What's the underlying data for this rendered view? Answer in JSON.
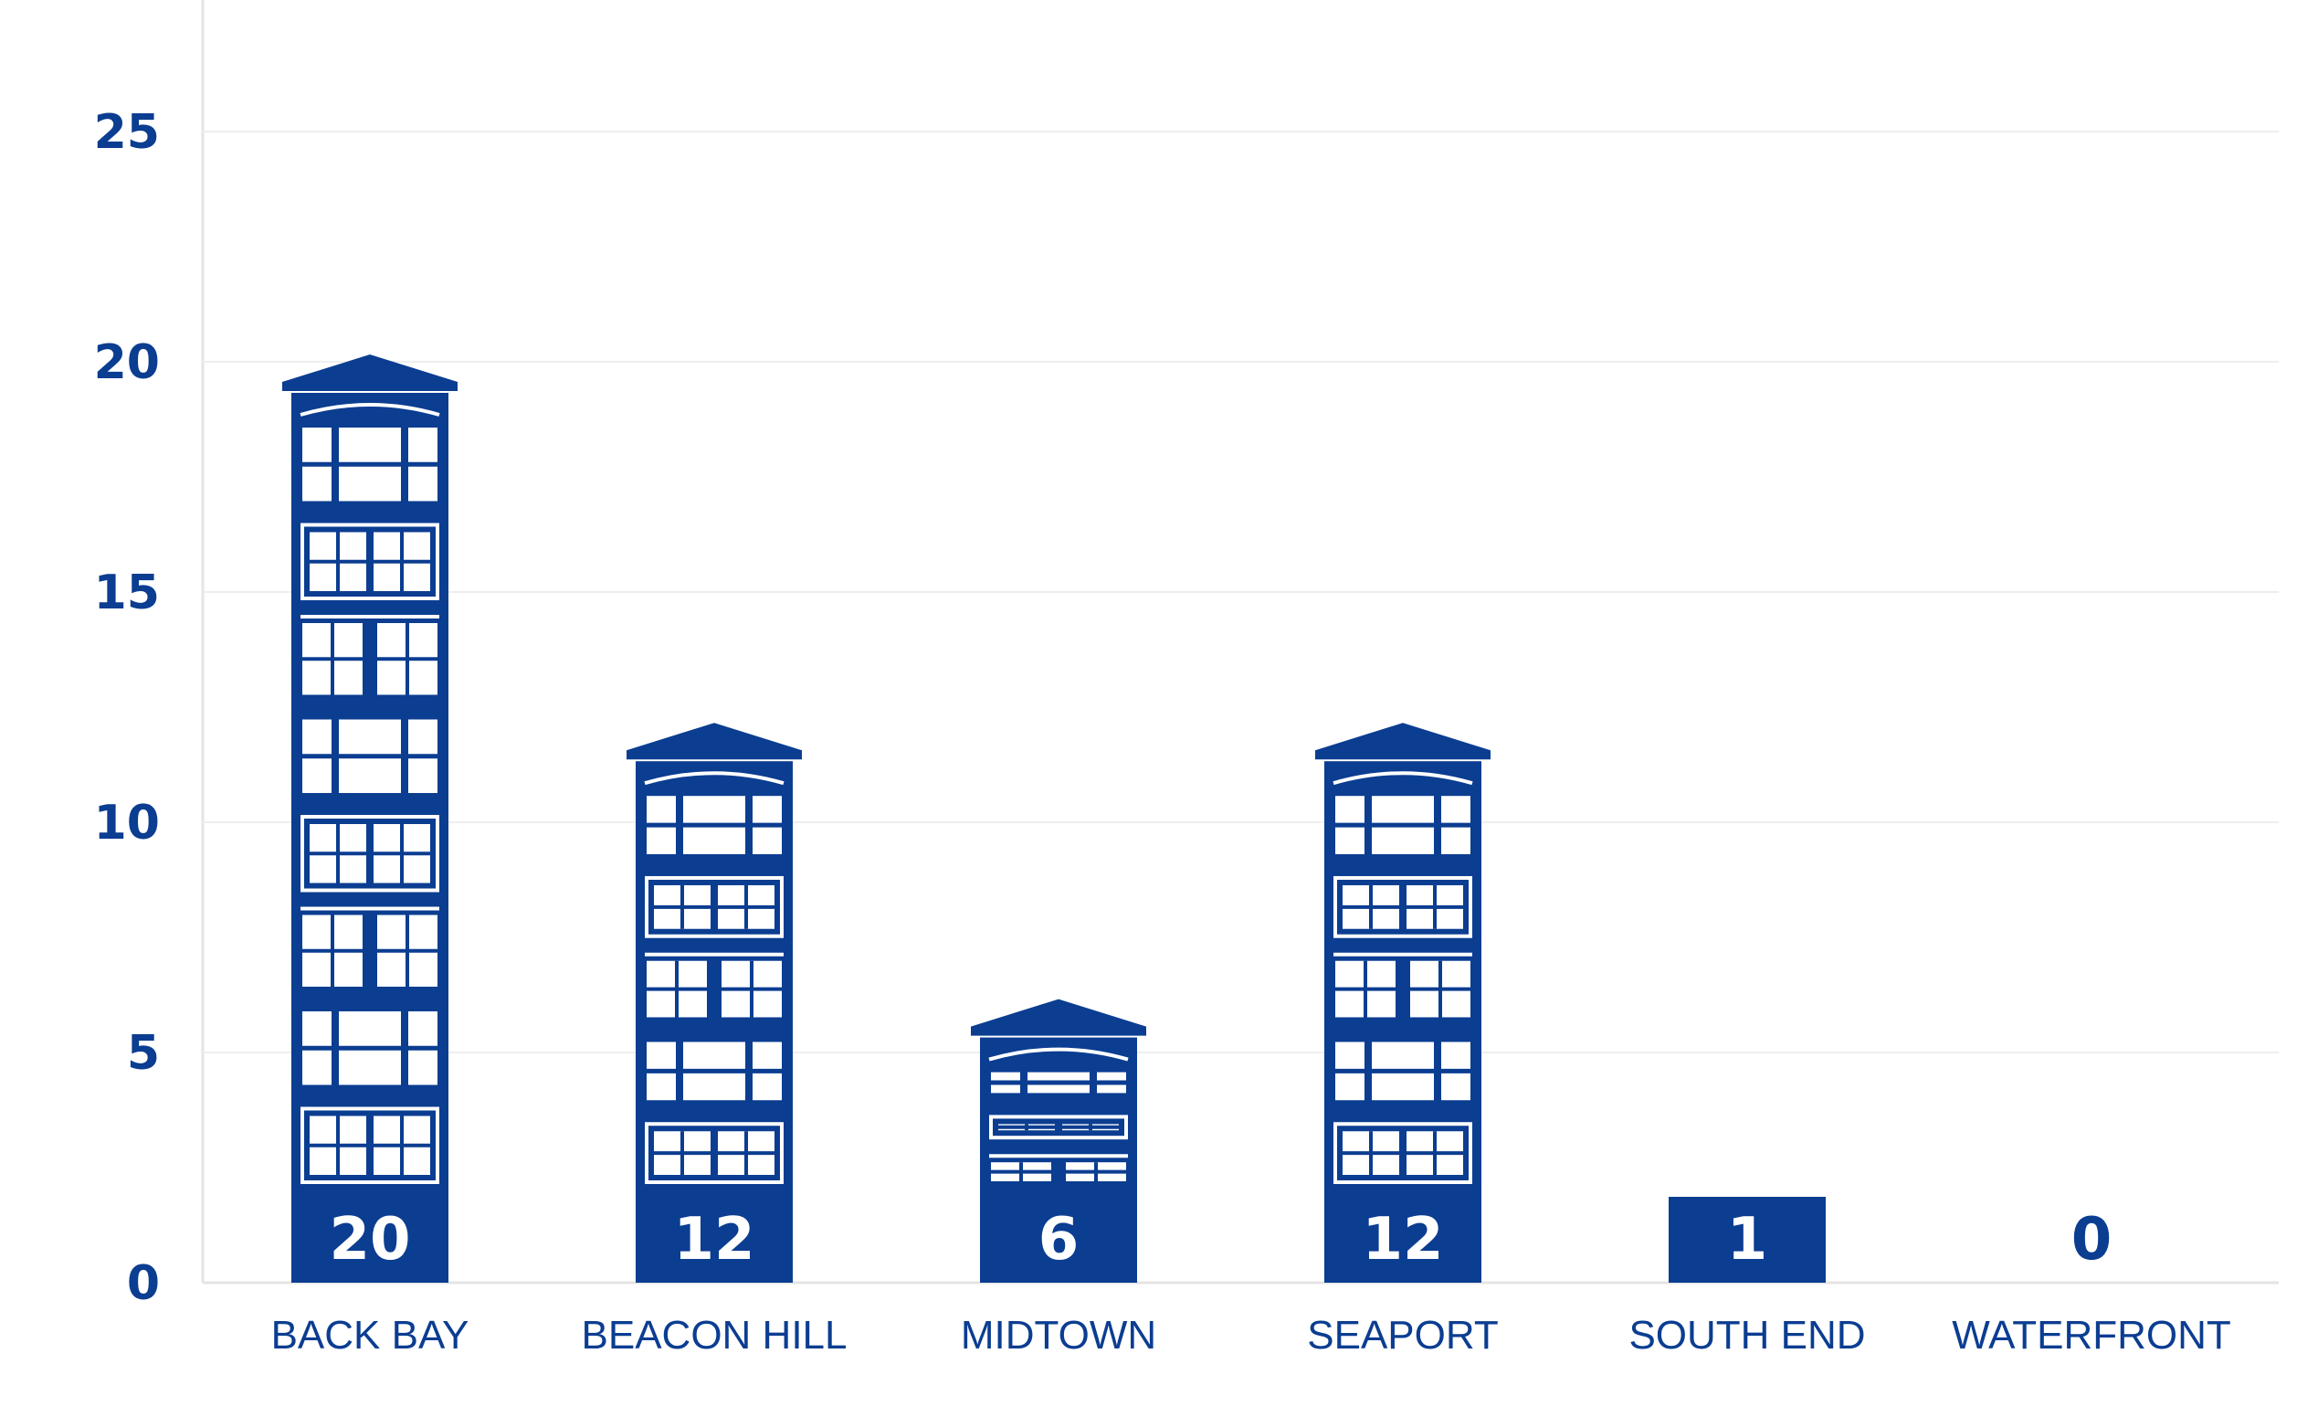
{
  "chart_data": {
    "type": "bar",
    "title": "",
    "xlabel": "",
    "ylabel": "",
    "categories": [
      "BACK BAY",
      "BEACON HILL",
      "MIDTOWN",
      "SEAPORT",
      "SOUTH END",
      "WATERFRONT"
    ],
    "values": [
      20,
      12,
      6,
      12,
      1,
      0
    ],
    "value_labels": [
      "20",
      "12",
      "6",
      "12",
      "1",
      "0"
    ],
    "ylim": [
      0,
      26.5
    ],
    "yticks": [
      0,
      5,
      10,
      15,
      20,
      25
    ],
    "ytick_labels": [
      "0",
      "5",
      "10",
      "15",
      "20",
      "25"
    ],
    "grid": true,
    "legend": "none",
    "bar_style": "building-icon",
    "colors": {
      "bar": "#0b3d91",
      "text": "#0b3d91",
      "window": "#ffffff",
      "grid": "#eeeeee",
      "axis": "#e4e4e4"
    }
  }
}
